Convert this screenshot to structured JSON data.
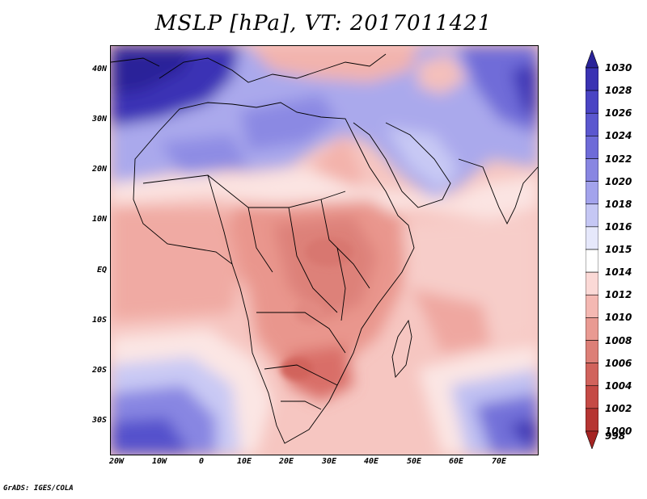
{
  "title": "MSLP [hPa], VT: 2017011421",
  "credit": "GrADS: IGES/COLA",
  "map": {
    "projection": "lat-lon",
    "lon_range": [
      "20W",
      "80E"
    ],
    "lat_range": [
      "37S",
      "45N"
    ],
    "lat_labels": [
      "40N",
      "30N",
      "20N",
      "10N",
      "EQ",
      "10S",
      "20S",
      "30S"
    ],
    "lon_labels": [
      "20W",
      "10W",
      "0",
      "10E",
      "20E",
      "30E",
      "40E",
      "50E",
      "60E",
      "70E"
    ]
  },
  "colorbar": {
    "labels": [
      "1030",
      "1028",
      "1026",
      "1024",
      "1022",
      "1020",
      "1018",
      "1016",
      "1015",
      "1014",
      "1012",
      "1010",
      "1008",
      "1006",
      "1004",
      "1002",
      "1000",
      "998"
    ],
    "colors": [
      "#2a2399",
      "#3a32b3",
      "#4a44c4",
      "#5b57cf",
      "#6e6bd8",
      "#8886e2",
      "#a3a3ec",
      "#c5c7f4",
      "#e6e8fb",
      "#ffffff",
      "#fbd9d6",
      "#f4b8b2",
      "#e99a92",
      "#dd7f77",
      "#d1635c",
      "#c54a45",
      "#b63532",
      "#a52423"
    ]
  }
}
